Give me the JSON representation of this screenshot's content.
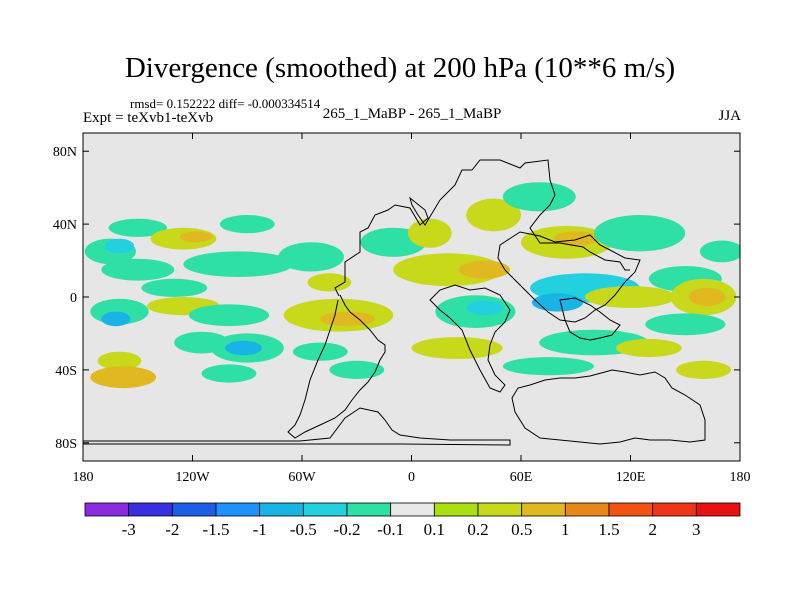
{
  "figure": {
    "title": "Divergence (smoothed) at 200 hPa (10**6 m/s)",
    "stats": "rmsd= 0.152222 diff= -0.000334514",
    "expt": "Expt = teXvb1-teXvb",
    "center_label": "265_1_MaBP - 265_1_MaBP",
    "season": "JJA"
  },
  "chart_data": {
    "type": "contour-map",
    "title": "Divergence (smoothed) at 200 hPa (10**6 m/s)",
    "field": "divergence difference, smoothed",
    "level_hPa": 200,
    "units": "10**6 m/s",
    "season": "JJA",
    "experiment": "teXvb1-teXvb",
    "rmsd": 0.152222,
    "diff": -0.000334514,
    "xlim": [
      -180,
      180
    ],
    "ylim": [
      -90,
      90
    ],
    "x_ticks": [
      -180,
      -120,
      -60,
      0,
      60,
      120,
      180
    ],
    "x_tick_labels": [
      "180",
      "120W",
      "60W",
      "0",
      "60E",
      "120E",
      "180"
    ],
    "y_ticks": [
      80,
      40,
      0,
      -40,
      -80
    ],
    "y_tick_labels": [
      "80N",
      "40N",
      "0",
      "40S",
      "80S"
    ],
    "colorbar": {
      "levels": [
        -3,
        -2,
        -1.5,
        -1,
        -0.5,
        -0.2,
        -0.1,
        0.1,
        0.2,
        0.5,
        1,
        1.5,
        2,
        3
      ],
      "labels": [
        "-3",
        "-2",
        "-1.5",
        "-1",
        "-0.5",
        "-0.2",
        "-0.1",
        "0.1",
        "0.2",
        "0.5",
        "1",
        "1.5",
        "2",
        "3"
      ],
      "colors": [
        "#8a2be2",
        "#3a2fe0",
        "#1c5ee6",
        "#1e90ff",
        "#18b4e6",
        "#22d0e0",
        "#2ee0a6",
        "#e8e8e8",
        "#a8e010",
        "#c8d81a",
        "#e0b820",
        "#e8881a",
        "#f05410",
        "#f03418",
        "#e81010"
      ]
    },
    "blobs": [
      {
        "lon": -165,
        "lat": 25,
        "rx": 14,
        "ry": 7,
        "cls": 6
      },
      {
        "lon": -160,
        "lat": 28,
        "rx": 8,
        "ry": 4,
        "cls": 5
      },
      {
        "lon": -150,
        "lat": 38,
        "rx": 16,
        "ry": 5,
        "cls": 6
      },
      {
        "lon": -125,
        "lat": 32,
        "rx": 18,
        "ry": 6,
        "cls": 9
      },
      {
        "lon": -118,
        "lat": 33,
        "rx": 9,
        "ry": 3,
        "cls": 10
      },
      {
        "lon": -90,
        "lat": 40,
        "rx": 15,
        "ry": 5,
        "cls": 6
      },
      {
        "lon": -150,
        "lat": 15,
        "rx": 20,
        "ry": 6,
        "cls": 6
      },
      {
        "lon": -95,
        "lat": 18,
        "rx": 30,
        "ry": 7,
        "cls": 6
      },
      {
        "lon": -130,
        "lat": 5,
        "rx": 18,
        "ry": 5,
        "cls": 6
      },
      {
        "lon": -160,
        "lat": -8,
        "rx": 16,
        "ry": 7,
        "cls": 6
      },
      {
        "lon": -162,
        "lat": -12,
        "rx": 8,
        "ry": 4,
        "cls": 4
      },
      {
        "lon": -125,
        "lat": -5,
        "rx": 20,
        "ry": 5,
        "cls": 9
      },
      {
        "lon": -100,
        "lat": -10,
        "rx": 22,
        "ry": 6,
        "cls": 6
      },
      {
        "lon": -115,
        "lat": -25,
        "rx": 15,
        "ry": 6,
        "cls": 6
      },
      {
        "lon": -90,
        "lat": -28,
        "rx": 20,
        "ry": 8,
        "cls": 6
      },
      {
        "lon": -92,
        "lat": -28,
        "rx": 10,
        "ry": 4,
        "cls": 4
      },
      {
        "lon": -160,
        "lat": -35,
        "rx": 12,
        "ry": 5,
        "cls": 9
      },
      {
        "lon": -158,
        "lat": -44,
        "rx": 18,
        "ry": 6,
        "cls": 10
      },
      {
        "lon": -100,
        "lat": -42,
        "rx": 15,
        "ry": 5,
        "cls": 6
      },
      {
        "lon": -55,
        "lat": 22,
        "rx": 18,
        "ry": 8,
        "cls": 6
      },
      {
        "lon": -45,
        "lat": 8,
        "rx": 12,
        "ry": 5,
        "cls": 9
      },
      {
        "lon": -40,
        "lat": -10,
        "rx": 30,
        "ry": 9,
        "cls": 9
      },
      {
        "lon": -35,
        "lat": -12,
        "rx": 15,
        "ry": 4,
        "cls": 10
      },
      {
        "lon": -50,
        "lat": -30,
        "rx": 15,
        "ry": 5,
        "cls": 6
      },
      {
        "lon": -30,
        "lat": -40,
        "rx": 15,
        "ry": 5,
        "cls": 6
      },
      {
        "lon": -10,
        "lat": 30,
        "rx": 18,
        "ry": 8,
        "cls": 6
      },
      {
        "lon": 10,
        "lat": 35,
        "rx": 12,
        "ry": 8,
        "cls": 9
      },
      {
        "lon": 20,
        "lat": 15,
        "rx": 30,
        "ry": 9,
        "cls": 9
      },
      {
        "lon": 40,
        "lat": 15,
        "rx": 14,
        "ry": 5,
        "cls": 10
      },
      {
        "lon": 35,
        "lat": -8,
        "rx": 22,
        "ry": 9,
        "cls": 6
      },
      {
        "lon": 40,
        "lat": -6,
        "rx": 10,
        "ry": 4,
        "cls": 5
      },
      {
        "lon": 25,
        "lat": -28,
        "rx": 25,
        "ry": 6,
        "cls": 9
      },
      {
        "lon": 45,
        "lat": 45,
        "rx": 15,
        "ry": 9,
        "cls": 9
      },
      {
        "lon": 70,
        "lat": 55,
        "rx": 20,
        "ry": 8,
        "cls": 6
      },
      {
        "lon": 85,
        "lat": 30,
        "rx": 25,
        "ry": 9,
        "cls": 9
      },
      {
        "lon": 90,
        "lat": 32,
        "rx": 12,
        "ry": 4,
        "cls": 10
      },
      {
        "lon": 125,
        "lat": 35,
        "rx": 25,
        "ry": 10,
        "cls": 6
      },
      {
        "lon": 95,
        "lat": 5,
        "rx": 30,
        "ry": 8,
        "cls": 5
      },
      {
        "lon": 80,
        "lat": -3,
        "rx": 14,
        "ry": 5,
        "cls": 4
      },
      {
        "lon": 120,
        "lat": 0,
        "rx": 25,
        "ry": 6,
        "cls": 9
      },
      {
        "lon": 150,
        "lat": 10,
        "rx": 20,
        "ry": 7,
        "cls": 6
      },
      {
        "lon": 160,
        "lat": 0,
        "rx": 18,
        "ry": 10,
        "cls": 9
      },
      {
        "lon": 162,
        "lat": 0,
        "rx": 10,
        "ry": 5,
        "cls": 10
      },
      {
        "lon": 150,
        "lat": -15,
        "rx": 22,
        "ry": 6,
        "cls": 6
      },
      {
        "lon": 100,
        "lat": -25,
        "rx": 30,
        "ry": 7,
        "cls": 6
      },
      {
        "lon": 130,
        "lat": -28,
        "rx": 18,
        "ry": 5,
        "cls": 9
      },
      {
        "lon": 75,
        "lat": -38,
        "rx": 25,
        "ry": 5,
        "cls": 6
      },
      {
        "lon": 160,
        "lat": -40,
        "rx": 15,
        "ry": 5,
        "cls": 9
      },
      {
        "lon": 170,
        "lat": 25,
        "rx": 12,
        "ry": 6,
        "cls": 6
      }
    ]
  }
}
